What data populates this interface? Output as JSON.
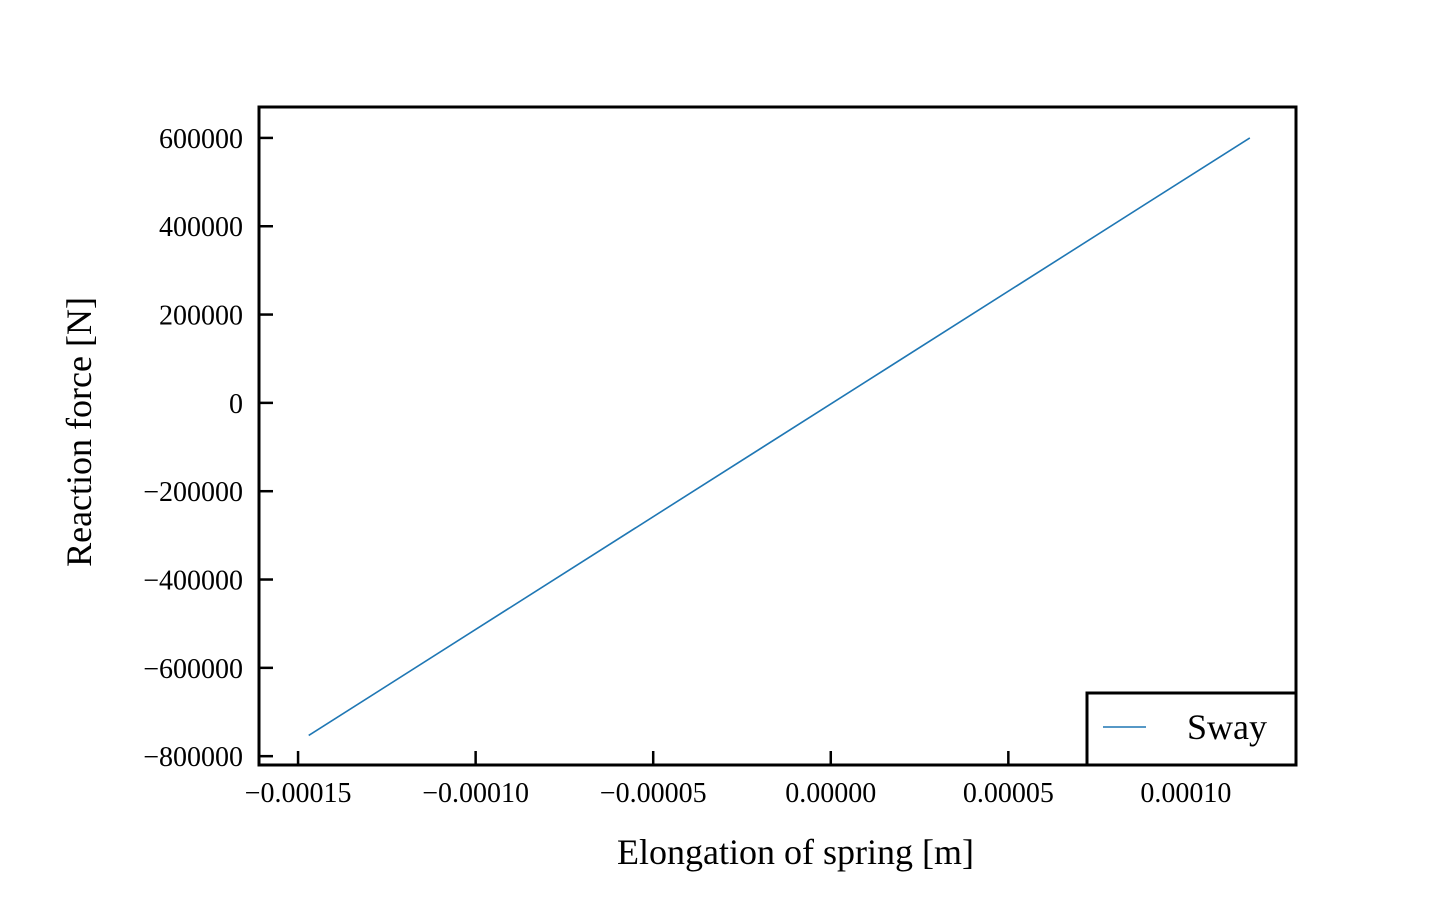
{
  "chart_data": {
    "type": "line",
    "title": "",
    "xlabel": "Elongation of spring [m]",
    "ylabel": "Reaction force [N]",
    "xlim": [
      -0.000161,
      0.000131
    ],
    "ylim": [
      -820000,
      670000
    ],
    "xticks": [
      -0.00015,
      -0.0001,
      -5e-05,
      0.0,
      5e-05,
      0.0001
    ],
    "xtick_labels": [
      "−0.00015",
      "−0.00010",
      "−0.00005",
      "0.00000",
      "0.00005",
      "0.00010"
    ],
    "yticks": [
      600000,
      400000,
      200000,
      0,
      -200000,
      -400000,
      -600000,
      -800000
    ],
    "ytick_labels": [
      "600000",
      "400000",
      "200000",
      "0",
      "−200000",
      "−400000",
      "−600000",
      "−800000"
    ],
    "grid": false,
    "tick_direction": "in",
    "legend_position": "bottom-right",
    "series": [
      {
        "name": "Sway",
        "color": "#1f77b4",
        "x": [
          -0.000147,
          0.000118
        ],
        "y": [
          -753000,
          600000
        ]
      }
    ]
  }
}
